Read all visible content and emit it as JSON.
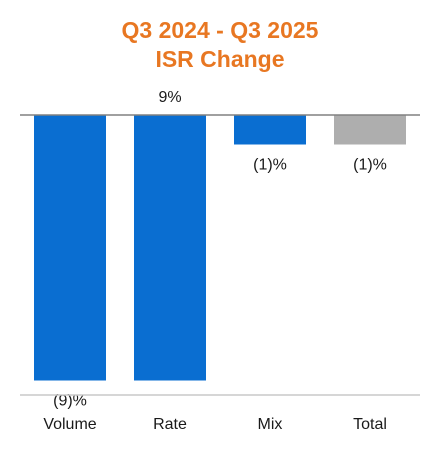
{
  "chart_data": {
    "type": "bar",
    "title": [
      "Q3 2024 - Q3 2025",
      "ISR Change"
    ],
    "categories": [
      "Volume",
      "Rate",
      "Mix",
      "Total"
    ],
    "values": [
      -9,
      9,
      -1,
      -1
    ],
    "data_labels": [
      "(9)%",
      "9%",
      "(1)%",
      "(1)%"
    ],
    "colors": [
      "#0A6ED1",
      "#0A6ED1",
      "#0A6ED1",
      "#AEAEAE"
    ],
    "baseline_color": "#808080",
    "xlabel": "",
    "ylabel": "",
    "ylim": [
      -9,
      0
    ],
    "grid": false,
    "legend": "none"
  }
}
